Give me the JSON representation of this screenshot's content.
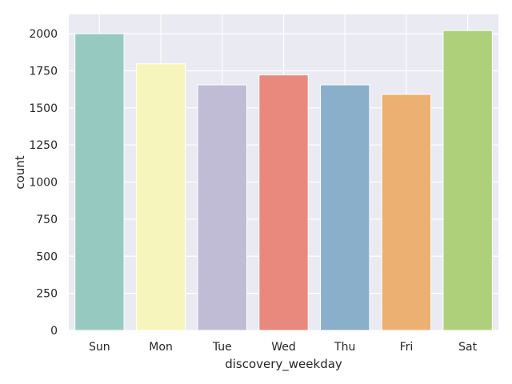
{
  "chart_data": {
    "type": "bar",
    "categories": [
      "Sun",
      "Mon",
      "Tue",
      "Wed",
      "Thu",
      "Fri",
      "Sat"
    ],
    "values": [
      2000,
      1797,
      1655,
      1722,
      1655,
      1591,
      2021
    ],
    "colors": [
      "#96cac1",
      "#f6f6bc",
      "#c0bcd6",
      "#e9897e",
      "#8aafca",
      "#ebb072",
      "#afd07b"
    ],
    "xlabel": "discovery_weekday",
    "ylabel": "count",
    "ylim": [
      0,
      2130
    ],
    "yticks": [
      0,
      250,
      500,
      750,
      1000,
      1250,
      1500,
      1750,
      2000
    ],
    "grid": true,
    "background": "#eaeaf2"
  }
}
